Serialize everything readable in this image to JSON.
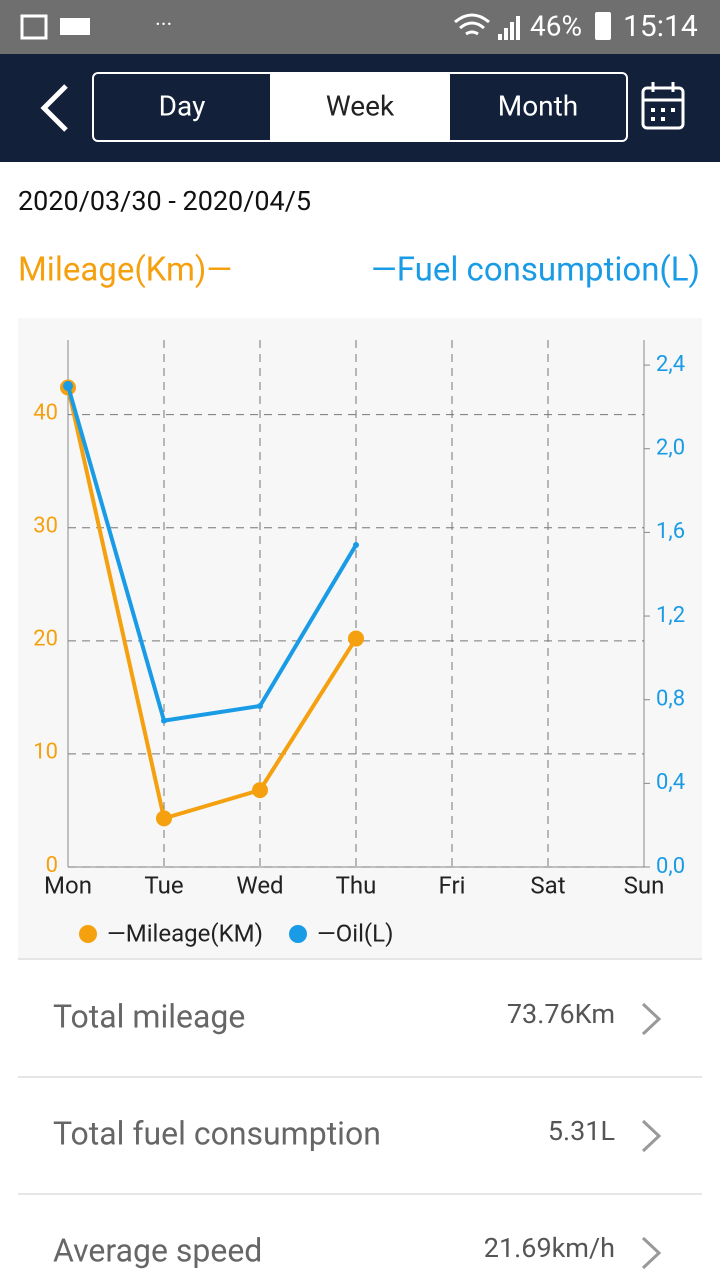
{
  "status_bar": {
    "battery": "46%",
    "time": "15:14"
  },
  "header": {
    "tabs": [
      "Day",
      "Week",
      "Month"
    ]
  },
  "date_range": "2020/03/30 - 2020/04/5",
  "chart_data": {
    "type": "line",
    "left_label": "Mileage(Km)—",
    "right_label": "—Fuel consumption(L)",
    "categories": [
      "Mon",
      "Tue",
      "Wed",
      "Thu",
      "Fri",
      "Sat",
      "Sun"
    ],
    "series": [
      {
        "name": "—Mileage(KM)",
        "color": "#f5a00f",
        "values": [
          42.4,
          4.3,
          6.8,
          20.2,
          null,
          null,
          null
        ]
      },
      {
        "name": "—Oil(L)",
        "color": "#1a9be6",
        "axis": "y2",
        "values": [
          2.3,
          0.7,
          0.77,
          1.54,
          null,
          null,
          null
        ]
      }
    ],
    "ylim": [
      0,
      46.6
    ],
    "yticks": [
      0,
      10,
      20,
      30,
      40
    ],
    "y2lim": [
      0,
      2.52
    ],
    "y2ticks": [
      {
        "value": 0,
        "label": "0,0"
      },
      {
        "value": 0.4,
        "label": "0,4"
      },
      {
        "value": 0.8,
        "label": "0,8"
      },
      {
        "value": 1.2,
        "label": "1,2"
      },
      {
        "value": 1.6,
        "label": "1,6"
      },
      {
        "value": 2.0,
        "label": "2,0"
      },
      {
        "value": 2.4,
        "label": "2,4"
      }
    ],
    "grid": true
  },
  "summary": {
    "rows": [
      {
        "label": "Total mileage",
        "value": "73.76Km"
      },
      {
        "label": "Total fuel consumption",
        "value": "5.31L"
      },
      {
        "label": "Average speed",
        "value": "21.69km/h"
      }
    ]
  }
}
